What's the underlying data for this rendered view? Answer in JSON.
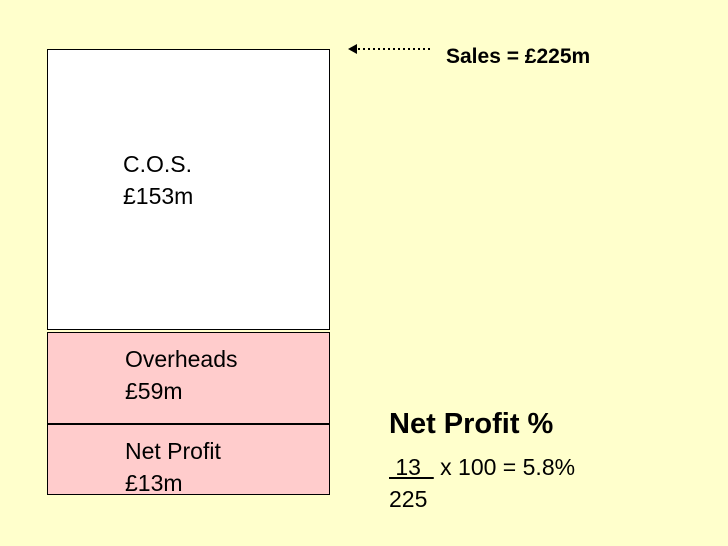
{
  "boxes": {
    "cos": {
      "line1": "C.O.S.",
      "line2": "£153m"
    },
    "overheads": {
      "line1": "Overheads",
      "line2": "£59m"
    },
    "net_profit": {
      "line1": "Net Profit",
      "line2": "£13m"
    }
  },
  "sales_label": "Sales = £225m",
  "calculation": {
    "title": "Net Profit %",
    "numerator": " 13  ",
    "expression": " x 100  =  5.8%",
    "denominator": "225"
  },
  "colors": {
    "background": "#ffffcc",
    "cos_fill": "#ffffff",
    "overheads_fill": "#ffcccc",
    "net_profit_fill": "#ffcccc"
  }
}
